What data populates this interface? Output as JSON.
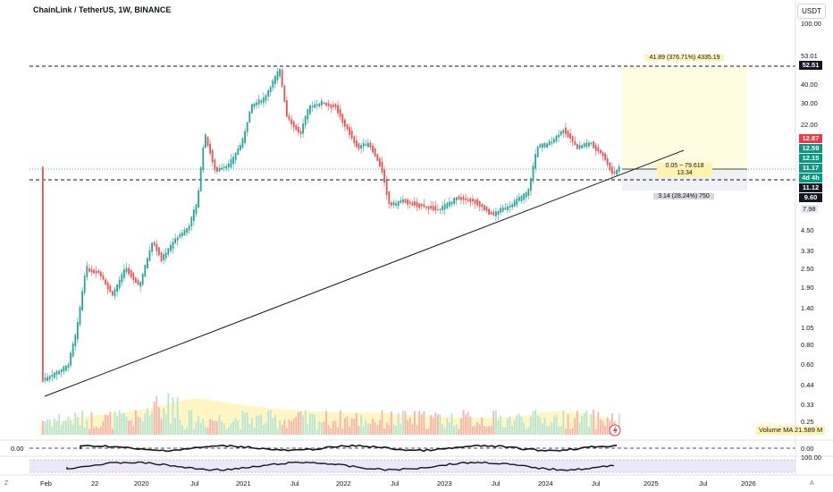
{
  "header": {
    "symbol_title": "ChainLink / TetherUS, 1W, BINANCE",
    "currency_button": "USDT"
  },
  "price_axis": {
    "labels": [
      "100.00",
      "53.01",
      "40.00",
      "30.00",
      "22.00",
      "7.98",
      "4.50",
      "3.30",
      "2.50",
      "1.90",
      "1.40",
      "1.05",
      "0.80",
      "0.60",
      "0.44",
      "0.33",
      "0.25"
    ]
  },
  "price_tags": [
    {
      "text": "52.51",
      "bg": "#131722",
      "fg": "#ffffff"
    },
    {
      "text": "12.87",
      "bg": "#f23645",
      "fg": "#ffffff"
    },
    {
      "text": "12.59",
      "bg": "#089981",
      "fg": "#ffffff"
    },
    {
      "text": "12.15",
      "bg": "#089981",
      "fg": "#ffffff"
    },
    {
      "text": "11.17",
      "bg": "#089981",
      "fg": "#ffffff"
    },
    {
      "text": "4d 4h",
      "bg": "#089981",
      "fg": "#ffffff"
    },
    {
      "text": "11.12",
      "bg": "#131722",
      "fg": "#ffffff"
    },
    {
      "text": "9.60",
      "bg": "#131722",
      "fg": "#ffffff"
    }
  ],
  "measure": {
    "top_label": "41.89 (376.71%) 4335.19",
    "mid_label_1": "0.05 ~ 79.618",
    "mid_label_2": "13.34",
    "bottom_label": "3.14 (28.24%) 750"
  },
  "volume": {
    "tag_label": "Volume MA",
    "tag_value": "21.589 M"
  },
  "indicator": {
    "pane1_left": "0.00",
    "pane1_right": "0.00",
    "pane2_right": "100.00"
  },
  "time_axis": {
    "labels": [
      "Feb",
      "22",
      "2020",
      "Jul",
      "2021",
      "Jul",
      "2022",
      "Jul",
      "2023",
      "Jul",
      "2024",
      "Jul",
      "2025",
      "Jul",
      "2026"
    ]
  },
  "corners": {
    "bottom_left": "Z",
    "bottom_right": "A"
  },
  "colors": {
    "up": "#26a69a",
    "down": "#ef5350",
    "vol_up": "#b7e4d8",
    "vol_down": "#f7b3b0"
  }
}
